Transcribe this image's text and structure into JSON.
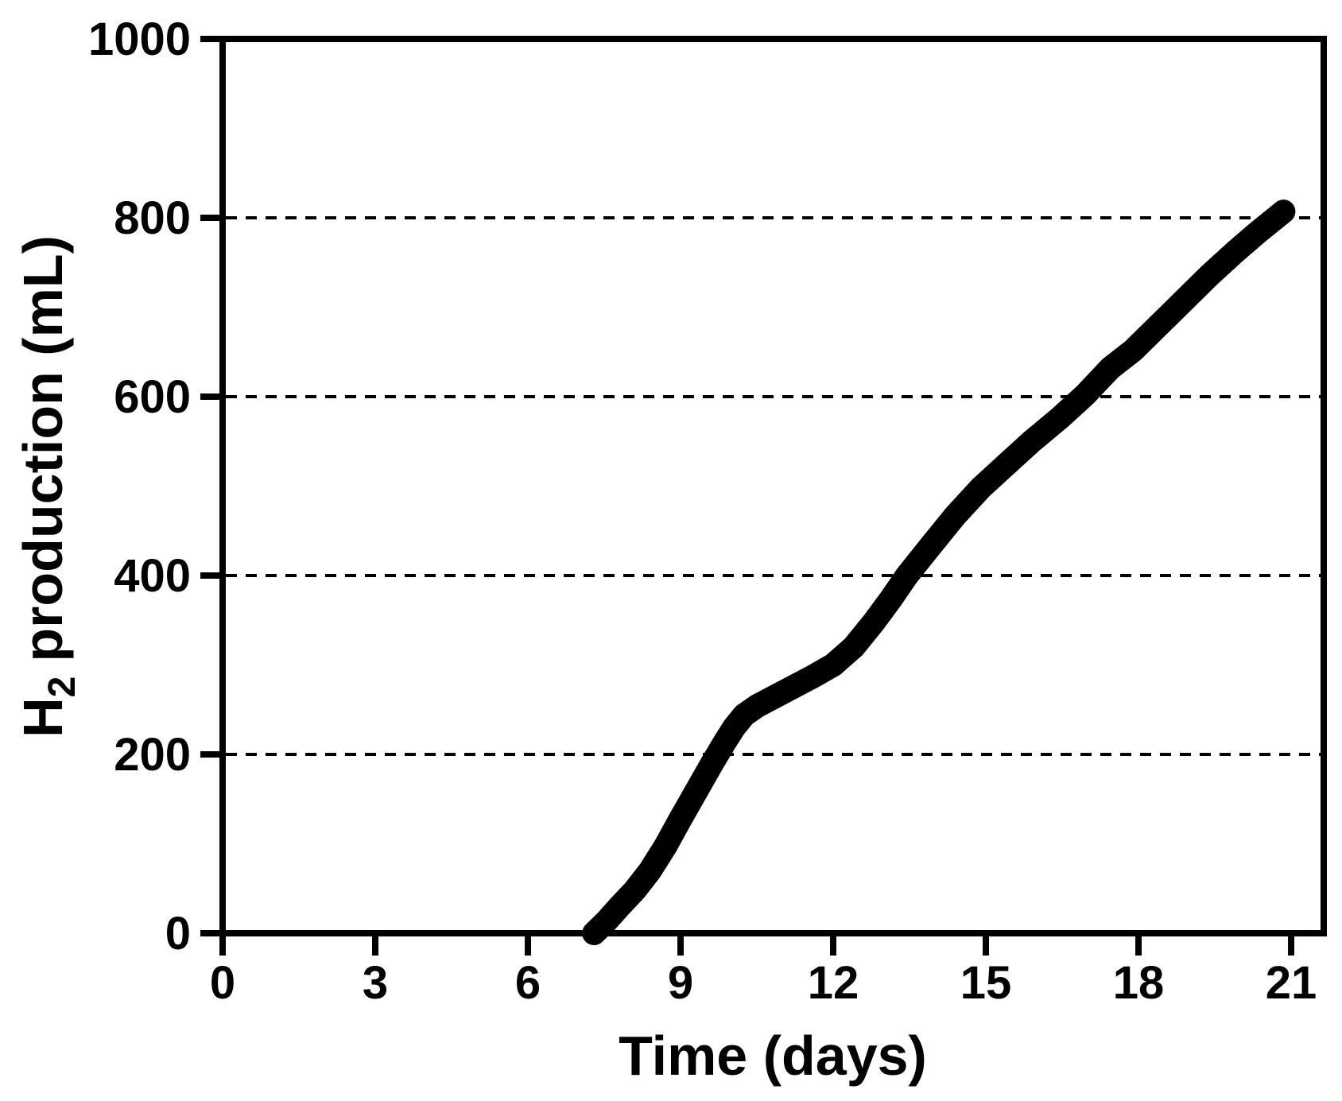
{
  "page": {
    "background": "#ffffff"
  },
  "chart_data": {
    "type": "line",
    "title": "",
    "xlabel": "Time (days)",
    "ylabel_full": "H₂ production (mL)",
    "ylabel": {
      "prefix": "H",
      "sub": "2",
      "rest": "production (mL)"
    },
    "xlim": [
      0,
      21.64
    ],
    "ylim": [
      0,
      1000
    ],
    "x_ticks": [
      0,
      3,
      6,
      9,
      12,
      15,
      18,
      21
    ],
    "y_ticks": [
      0,
      200,
      400,
      600,
      800,
      1000
    ],
    "gridlines_y": [
      200,
      400,
      600,
      800
    ],
    "grid_style": "dashed",
    "legend": "none",
    "colors": {
      "axis": "#000000",
      "line": "#000000",
      "background": "#ffffff"
    },
    "series": [
      {
        "name": "H2 production",
        "color": "#000000",
        "line_width": 30,
        "points": [
          [
            7.3,
            0
          ],
          [
            7.55,
            14
          ],
          [
            7.8,
            30
          ],
          [
            8.1,
            48
          ],
          [
            8.4,
            70
          ],
          [
            8.7,
            97
          ],
          [
            9.0,
            128
          ],
          [
            9.3,
            158
          ],
          [
            9.6,
            188
          ],
          [
            9.85,
            212
          ],
          [
            10.05,
            230
          ],
          [
            10.25,
            244
          ],
          [
            10.5,
            254
          ],
          [
            10.8,
            263
          ],
          [
            11.2,
            275
          ],
          [
            11.6,
            287
          ],
          [
            12.0,
            300
          ],
          [
            12.4,
            320
          ],
          [
            12.8,
            348
          ],
          [
            13.15,
            375
          ],
          [
            13.45,
            400
          ],
          [
            13.9,
            432
          ],
          [
            14.4,
            467
          ],
          [
            14.9,
            498
          ],
          [
            15.4,
            524
          ],
          [
            15.9,
            550
          ],
          [
            16.45,
            576
          ],
          [
            16.95,
            602
          ],
          [
            17.45,
            632
          ],
          [
            17.9,
            652
          ],
          [
            18.4,
            680
          ],
          [
            18.9,
            708
          ],
          [
            19.4,
            736
          ],
          [
            19.9,
            762
          ],
          [
            20.35,
            784
          ],
          [
            20.85,
            807
          ]
        ]
      }
    ]
  }
}
